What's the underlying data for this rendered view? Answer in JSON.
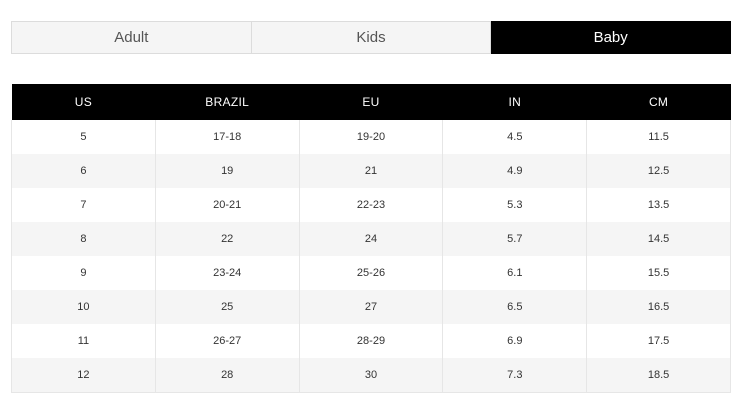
{
  "tabs": [
    {
      "label": "Adult",
      "active": false
    },
    {
      "label": "Kids",
      "active": false
    },
    {
      "label": "Baby",
      "active": true
    }
  ],
  "table": {
    "headers": [
      "US",
      "BRAZIL",
      "EU",
      "IN",
      "CM"
    ],
    "rows": [
      [
        "5",
        "17-18",
        "19-20",
        "4.5",
        "11.5"
      ],
      [
        "6",
        "19",
        "21",
        "4.9",
        "12.5"
      ],
      [
        "7",
        "20-21",
        "22-23",
        "5.3",
        "13.5"
      ],
      [
        "8",
        "22",
        "24",
        "5.7",
        "14.5"
      ],
      [
        "9",
        "23-24",
        "25-26",
        "6.1",
        "15.5"
      ],
      [
        "10",
        "25",
        "27",
        "6.5",
        "16.5"
      ],
      [
        "11",
        "26-27",
        "28-29",
        "6.9",
        "17.5"
      ],
      [
        "12",
        "28",
        "30",
        "7.3",
        "18.5"
      ]
    ]
  },
  "colors": {
    "active_tab_bg": "#000000",
    "header_bg": "#000000",
    "stripe_bg": "#f5f5f5"
  }
}
